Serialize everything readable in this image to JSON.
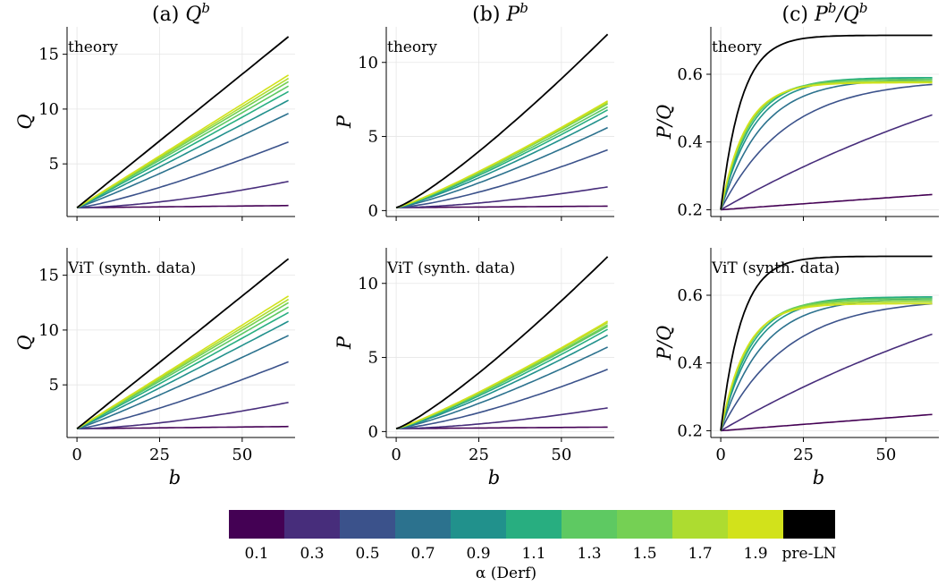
{
  "figure": {
    "column_titles": [
      "(a) Q^b",
      "(b) P^b",
      "(c) P^b/Q^b"
    ],
    "row_labels": [
      "theory",
      "ViT (synth. data)"
    ],
    "xlabel": "b",
    "colorbar": {
      "label": "α (Derf)",
      "entries": [
        "0.1",
        "0.3",
        "0.5",
        "0.7",
        "0.9",
        "1.1",
        "1.3",
        "1.5",
        "1.7",
        "1.9"
      ],
      "colors": [
        "#440154",
        "#472d7b",
        "#3b528b",
        "#2c728e",
        "#21918c",
        "#28ae80",
        "#5ec962",
        "#75d054",
        "#addc30",
        "#d2e21b"
      ],
      "pre_ln_label": "pre-LN",
      "pre_ln_color": "#000000"
    }
  },
  "chart_data": [
    {
      "id": "a-theory",
      "type": "line",
      "title": "(a) Q^b",
      "annotation": "theory",
      "xlabel": "",
      "ylabel": "Q",
      "xlim": [
        -3,
        66
      ],
      "ylim": [
        0.2,
        17.5
      ],
      "xticks": [
        0,
        25,
        50
      ],
      "yticks": [
        5,
        10,
        15
      ],
      "grid": true,
      "x_end": 64,
      "y0": 1,
      "series": [
        {
          "name": "0.1",
          "end": 1.2,
          "shape": 1.0
        },
        {
          "name": "0.3",
          "end": 3.4,
          "shape": 1.6
        },
        {
          "name": "0.5",
          "end": 7.0,
          "shape": 1.25
        },
        {
          "name": "0.7",
          "end": 9.6,
          "shape": 1.08
        },
        {
          "name": "0.9",
          "end": 10.8,
          "shape": 1.03
        },
        {
          "name": "1.1",
          "end": 11.6,
          "shape": 1.01
        },
        {
          "name": "1.3",
          "end": 12.1,
          "shape": 1.0
        },
        {
          "name": "1.5",
          "end": 12.5,
          "shape": 1.0
        },
        {
          "name": "1.7",
          "end": 12.8,
          "shape": 1.0
        },
        {
          "name": "1.9",
          "end": 13.1,
          "shape": 1.0
        },
        {
          "name": "pre-LN",
          "end": 16.6,
          "shape": 1.0
        }
      ]
    },
    {
      "id": "b-theory",
      "type": "line",
      "title": "(b) P^b",
      "annotation": "theory",
      "xlabel": "",
      "ylabel": "P",
      "xlim": [
        -3,
        66
      ],
      "ylim": [
        -0.4,
        12.4
      ],
      "xticks": [
        0,
        25,
        50
      ],
      "yticks": [
        0,
        5,
        10
      ],
      "grid": true,
      "x_end": 64,
      "y0": 0.2,
      "series": [
        {
          "name": "0.1",
          "end": 0.3,
          "shape": 1.0
        },
        {
          "name": "0.3",
          "end": 1.6,
          "shape": 1.6
        },
        {
          "name": "0.5",
          "end": 4.1,
          "shape": 1.4
        },
        {
          "name": "0.7",
          "end": 5.6,
          "shape": 1.25
        },
        {
          "name": "0.9",
          "end": 6.4,
          "shape": 1.2
        },
        {
          "name": "1.1",
          "end": 6.8,
          "shape": 1.18
        },
        {
          "name": "1.3",
          "end": 7.0,
          "shape": 1.16
        },
        {
          "name": "1.5",
          "end": 7.2,
          "shape": 1.15
        },
        {
          "name": "1.7",
          "end": 7.3,
          "shape": 1.15
        },
        {
          "name": "1.9",
          "end": 7.4,
          "shape": 1.15
        },
        {
          "name": "pre-LN",
          "end": 11.9,
          "shape": 1.2
        }
      ]
    },
    {
      "id": "c-theory",
      "type": "line",
      "title": "(c) P^b/Q^b",
      "annotation": "theory",
      "xlabel": "",
      "ylabel": "P/Q",
      "xlim": [
        -3,
        66
      ],
      "ylim": [
        0.18,
        0.74
      ],
      "xticks": [
        0,
        25,
        50
      ],
      "yticks": [
        0.2,
        0.4,
        0.6
      ],
      "grid": true,
      "x_end": 64,
      "y0": 0.2,
      "series": [
        {
          "name": "0.1",
          "end": 0.245,
          "k": 0
        },
        {
          "name": "0.3",
          "end": 0.48,
          "k": 0.008
        },
        {
          "name": "0.5",
          "end": 0.57,
          "k": 0.05
        },
        {
          "name": "0.7",
          "end": 0.585,
          "k": 0.08
        },
        {
          "name": "0.9",
          "end": 0.59,
          "k": 0.1
        },
        {
          "name": "1.1",
          "end": 0.59,
          "k": 0.11
        },
        {
          "name": "1.3",
          "end": 0.585,
          "k": 0.12
        },
        {
          "name": "1.5",
          "end": 0.58,
          "k": 0.125
        },
        {
          "name": "1.7",
          "end": 0.578,
          "k": 0.13
        },
        {
          "name": "1.9",
          "end": 0.575,
          "k": 0.135
        },
        {
          "name": "pre-LN",
          "end": 0.715,
          "k": 0.16
        }
      ]
    },
    {
      "id": "a-vit",
      "type": "line",
      "annotation": "ViT (synth. data)",
      "xlabel": "b",
      "ylabel": "Q",
      "xlim": [
        -3,
        66
      ],
      "ylim": [
        0.2,
        17.5
      ],
      "xticks": [
        0,
        25,
        50
      ],
      "yticks": [
        5,
        10,
        15
      ],
      "grid": true,
      "x_end": 64,
      "y0": 1,
      "series": [
        {
          "name": "0.1",
          "end": 1.2,
          "shape": 1.0
        },
        {
          "name": "0.3",
          "end": 3.4,
          "shape": 1.6
        },
        {
          "name": "0.5",
          "end": 7.1,
          "shape": 1.25
        },
        {
          "name": "0.7",
          "end": 9.5,
          "shape": 1.08
        },
        {
          "name": "0.9",
          "end": 10.8,
          "shape": 1.03
        },
        {
          "name": "1.1",
          "end": 11.6,
          "shape": 1.01
        },
        {
          "name": "1.3",
          "end": 12.1,
          "shape": 1.0
        },
        {
          "name": "1.5",
          "end": 12.5,
          "shape": 1.0
        },
        {
          "name": "1.7",
          "end": 12.8,
          "shape": 1.0
        },
        {
          "name": "1.9",
          "end": 13.1,
          "shape": 1.0
        },
        {
          "name": "pre-LN",
          "end": 16.5,
          "shape": 1.0
        }
      ]
    },
    {
      "id": "b-vit",
      "type": "line",
      "annotation": "ViT (synth. data)",
      "xlabel": "b",
      "ylabel": "P",
      "xlim": [
        -3,
        66
      ],
      "ylim": [
        -0.4,
        12.4
      ],
      "xticks": [
        0,
        25,
        50
      ],
      "yticks": [
        0,
        5,
        10
      ],
      "grid": true,
      "x_end": 64,
      "y0": 0.2,
      "series": [
        {
          "name": "0.1",
          "end": 0.3,
          "shape": 1.0
        },
        {
          "name": "0.3",
          "end": 1.6,
          "shape": 1.6
        },
        {
          "name": "0.5",
          "end": 4.2,
          "shape": 1.4
        },
        {
          "name": "0.7",
          "end": 5.7,
          "shape": 1.25
        },
        {
          "name": "0.9",
          "end": 6.5,
          "shape": 1.2
        },
        {
          "name": "1.1",
          "end": 6.9,
          "shape": 1.18
        },
        {
          "name": "1.3",
          "end": 7.1,
          "shape": 1.16
        },
        {
          "name": "1.5",
          "end": 7.2,
          "shape": 1.15
        },
        {
          "name": "1.7",
          "end": 7.35,
          "shape": 1.15
        },
        {
          "name": "1.9",
          "end": 7.45,
          "shape": 1.15
        },
        {
          "name": "pre-LN",
          "end": 11.8,
          "shape": 1.2
        }
      ]
    },
    {
      "id": "c-vit",
      "type": "line",
      "annotation": "ViT (synth. data)",
      "xlabel": "b",
      "ylabel": "P/Q",
      "xlim": [
        -3,
        66
      ],
      "ylim": [
        0.18,
        0.74
      ],
      "xticks": [
        0,
        25,
        50
      ],
      "yticks": [
        0.2,
        0.4,
        0.6
      ],
      "grid": true,
      "x_end": 64,
      "y0": 0.2,
      "series": [
        {
          "name": "0.1",
          "end": 0.248,
          "k": 0
        },
        {
          "name": "0.3",
          "end": 0.485,
          "k": 0.008
        },
        {
          "name": "0.5",
          "end": 0.575,
          "k": 0.05
        },
        {
          "name": "0.7",
          "end": 0.59,
          "k": 0.08
        },
        {
          "name": "0.9",
          "end": 0.595,
          "k": 0.1
        },
        {
          "name": "1.1",
          "end": 0.595,
          "k": 0.11
        },
        {
          "name": "1.3",
          "end": 0.59,
          "k": 0.12
        },
        {
          "name": "1.5",
          "end": 0.585,
          "k": 0.125
        },
        {
          "name": "1.7",
          "end": 0.58,
          "k": 0.13
        },
        {
          "name": "1.9",
          "end": 0.575,
          "k": 0.135
        },
        {
          "name": "pre-LN",
          "end": 0.715,
          "k": 0.16
        }
      ]
    }
  ]
}
